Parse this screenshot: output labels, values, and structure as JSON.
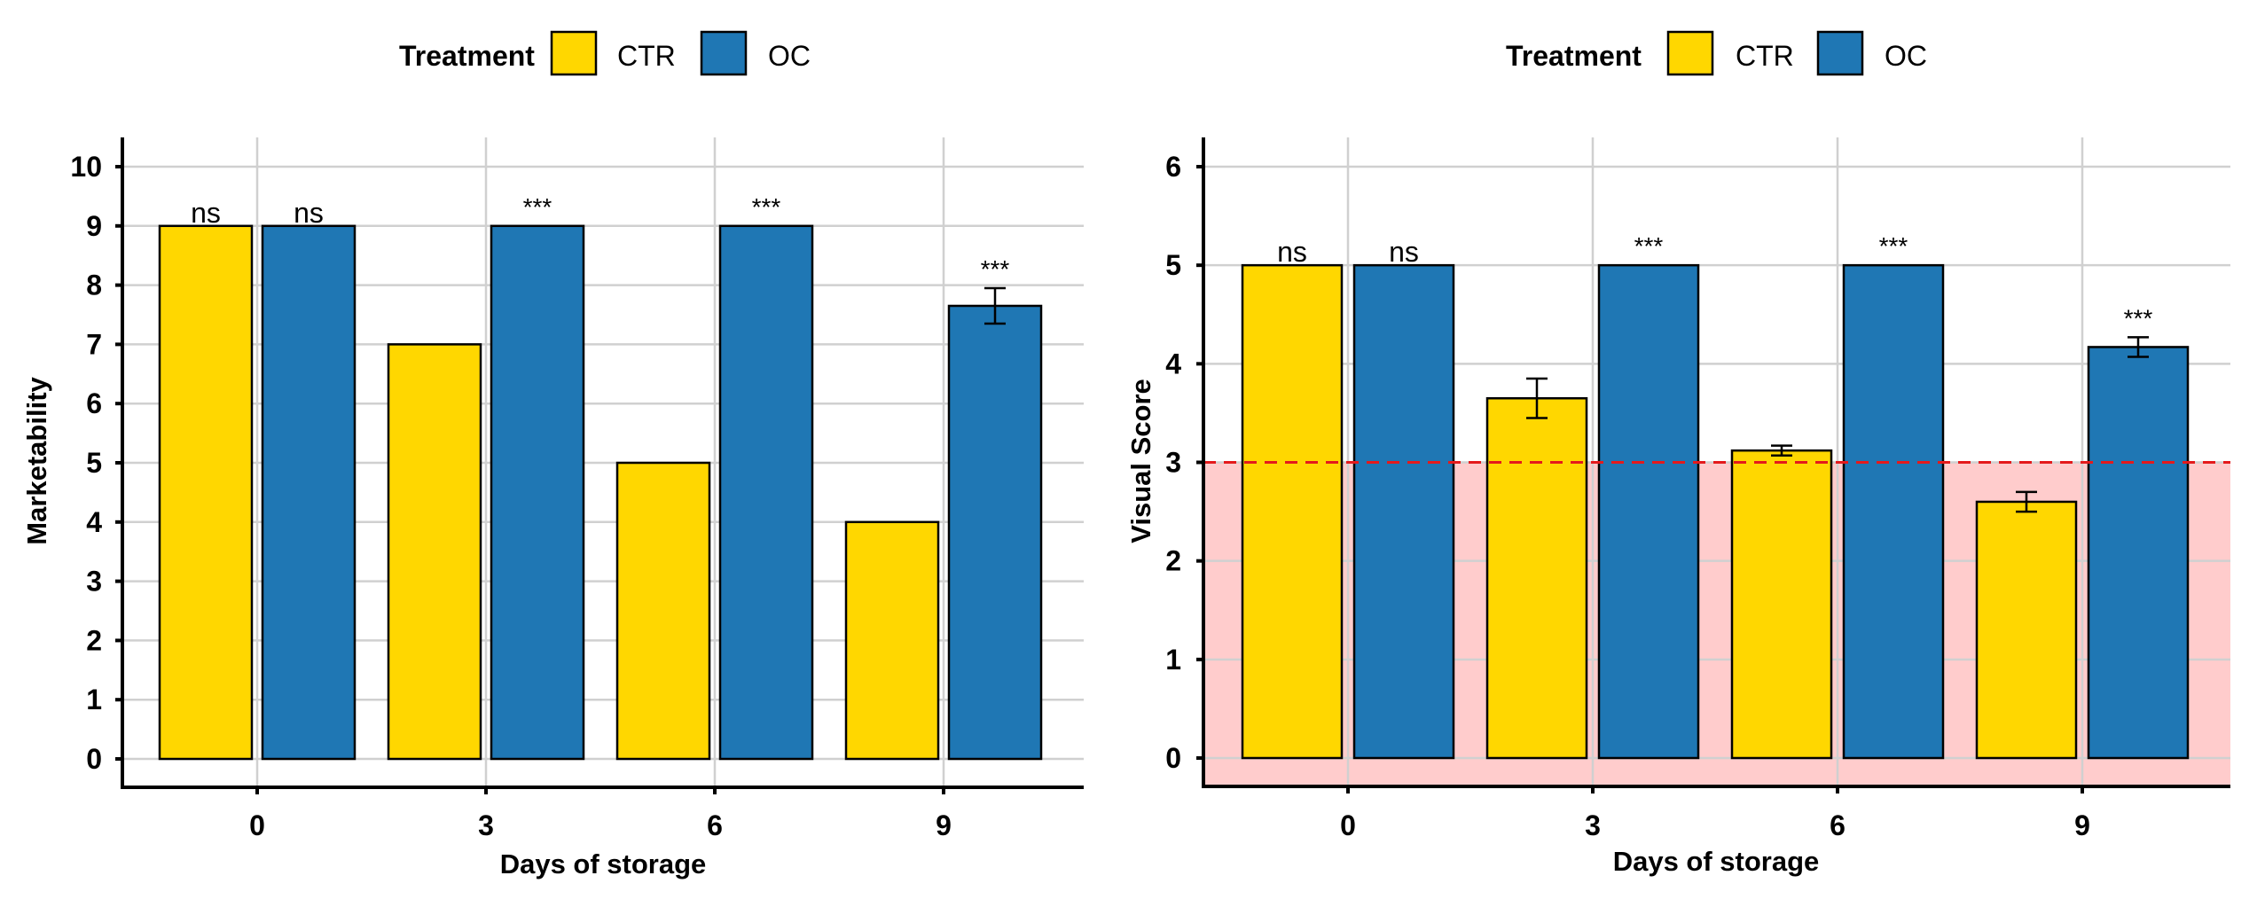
{
  "colors": {
    "CTR": "#FFD700",
    "OC": "#1F77B4",
    "threshold": "#E41A1C",
    "shade": "#FFCCCC"
  },
  "chart_data": [
    {
      "type": "bar",
      "legend": {
        "title": "Treatment",
        "entries": [
          "CTR",
          "OC"
        ],
        "position": "top"
      },
      "xlabel": "Days of storage",
      "ylabel": "Marketability",
      "categories": [
        "0",
        "3",
        "6",
        "9"
      ],
      "ylim": [
        0,
        10
      ],
      "yticks": [
        0,
        1,
        2,
        3,
        4,
        5,
        6,
        7,
        8,
        9,
        10
      ],
      "grid": true,
      "series": [
        {
          "name": "CTR",
          "values": [
            9,
            7,
            5,
            4
          ],
          "errors": [
            0,
            0,
            0,
            0
          ]
        },
        {
          "name": "OC",
          "values": [
            9,
            9,
            9,
            7.65
          ],
          "errors": [
            0,
            0,
            0,
            0.3
          ]
        }
      ],
      "annotations": [
        {
          "category": "0",
          "series": "CTR",
          "text": "ns"
        },
        {
          "category": "0",
          "series": "OC",
          "text": "ns"
        },
        {
          "category": "3",
          "series": "OC",
          "text": "***"
        },
        {
          "category": "6",
          "series": "OC",
          "text": "***"
        },
        {
          "category": "9",
          "series": "OC",
          "text": "***"
        }
      ]
    },
    {
      "type": "bar",
      "legend": {
        "title": "Treatment",
        "entries": [
          "CTR",
          "OC"
        ],
        "position": "top"
      },
      "xlabel": "Days of storage",
      "ylabel": "Visual Score",
      "categories": [
        "0",
        "3",
        "6",
        "9"
      ],
      "ylim": [
        0,
        6
      ],
      "yticks": [
        0,
        1,
        2,
        3,
        4,
        5,
        6
      ],
      "grid": true,
      "threshold": 3,
      "series": [
        {
          "name": "CTR",
          "values": [
            5,
            3.65,
            3.12,
            2.6
          ],
          "errors": [
            0,
            0.2,
            0.05,
            0.1
          ]
        },
        {
          "name": "OC",
          "values": [
            5,
            5,
            5,
            4.17
          ],
          "errors": [
            0,
            0,
            0,
            0.1
          ]
        }
      ],
      "annotations": [
        {
          "category": "0",
          "series": "CTR",
          "text": "ns"
        },
        {
          "category": "0",
          "series": "OC",
          "text": "ns"
        },
        {
          "category": "3",
          "series": "OC",
          "text": "***"
        },
        {
          "category": "6",
          "series": "OC",
          "text": "***"
        },
        {
          "category": "9",
          "series": "OC",
          "text": "***"
        }
      ]
    }
  ]
}
